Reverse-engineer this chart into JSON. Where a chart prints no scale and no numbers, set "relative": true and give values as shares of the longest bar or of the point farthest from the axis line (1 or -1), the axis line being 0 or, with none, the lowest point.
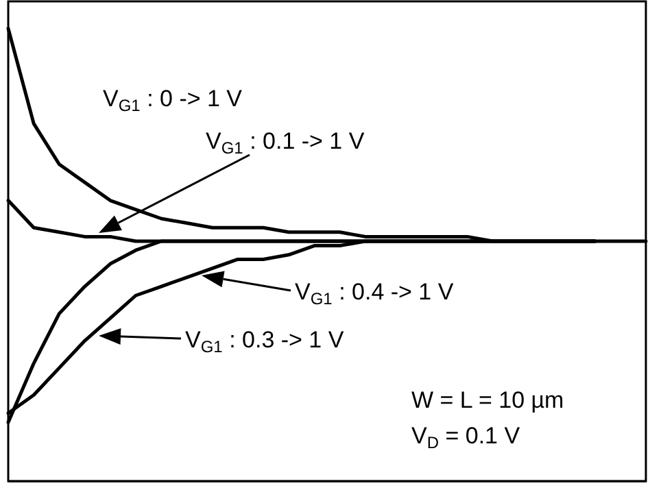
{
  "chart_data": {
    "type": "line",
    "relative": true,
    "marker": "none",
    "line_style": "solid",
    "grid": false,
    "categories": [
      null,
      null,
      null,
      null,
      null,
      null,
      null,
      null,
      null,
      null,
      null,
      null,
      null,
      null,
      null,
      null,
      null,
      null,
      null,
      null,
      null,
      null,
      null,
      null,
      null,
      null
    ],
    "series": [
      {
        "color": "#000000",
        "values": [
          1.0,
          0.79,
          0.7,
          0.66,
          0.62,
          0.6,
          0.58,
          0.57,
          0.56,
          0.56,
          0.56,
          0.55,
          0.55,
          0.55,
          0.54,
          0.54,
          0.54,
          0.54,
          0.54,
          0.53,
          0.53,
          0.53,
          0.53,
          0.53,
          null,
          null
        ]
      },
      {
        "color": "#000000",
        "values": [
          0.62,
          0.56,
          0.55,
          0.54,
          0.54,
          0.53,
          0.53,
          0.53,
          0.53,
          0.53,
          0.53,
          0.53,
          0.53,
          0.53,
          0.53,
          0.53,
          0.53,
          0.53,
          0.53,
          0.53,
          0.53,
          0.53,
          0.53,
          0.53,
          0.53,
          0.53
        ]
      },
      {
        "color": "#000000",
        "values": [
          0.13,
          0.26,
          0.37,
          0.43,
          0.48,
          0.51,
          0.53,
          0.53,
          0.53,
          0.53,
          0.53,
          0.53,
          0.53,
          0.53,
          0.53,
          0.53,
          0.53,
          0.53,
          0.53,
          0.53,
          0.53,
          0.53,
          0.53,
          0.53,
          null,
          null
        ]
      },
      {
        "color": "#000000",
        "values": [
          0.15,
          0.19,
          0.25,
          0.31,
          0.36,
          0.41,
          0.43,
          0.45,
          0.47,
          0.49,
          0.49,
          0.5,
          0.52,
          0.52,
          0.53,
          0.53,
          0.53,
          0.53,
          0.53,
          0.53,
          0.53,
          0.53,
          0.53,
          0.53,
          null,
          null
        ]
      }
    ],
    "annotations": [
      "V$_{G1}$ : 0 -> 1 V",
      "V$_{G1}$ : 0.1 -> 1 V",
      "V$_{G1}$ : 0.4 -> 1 V",
      "V$_{G1}$ : 0.3 -> 1 V",
      "W = L = 10 µm",
      "V$_{D}$ = 0.1 V"
    ]
  }
}
